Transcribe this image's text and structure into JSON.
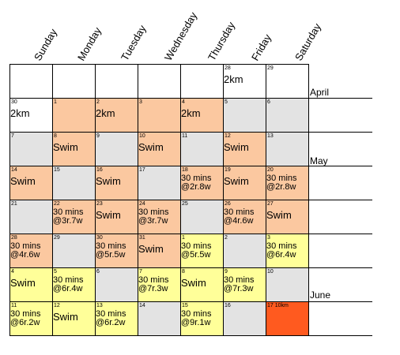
{
  "days": [
    "Sunday",
    "Monday",
    "Tuesday",
    "Wednesday",
    "Thursday",
    "Friday",
    "Saturday"
  ],
  "colors": {
    "lavender": "#ccccff",
    "peach": "#fbc8a0",
    "gray": "#e3e3e3",
    "yellow": "#ffff99",
    "red": "#ff5a1f",
    "white": "#ffffff"
  },
  "weeks": [
    {
      "month": "April",
      "cells": [
        {
          "date": "",
          "text": "",
          "color": "white"
        },
        {
          "date": "",
          "text": "",
          "color": "white"
        },
        {
          "date": "",
          "text": "",
          "color": "white"
        },
        {
          "date": "",
          "text": "",
          "color": "white"
        },
        {
          "date": "",
          "text": "",
          "color": "white"
        },
        {
          "date": "28",
          "text": "2km",
          "color": "lavender"
        },
        {
          "date": "29",
          "text": "",
          "color": "lavender"
        }
      ]
    },
    {
      "month": "",
      "cells": [
        {
          "date": "30",
          "text": "2km",
          "color": "lavender"
        },
        {
          "date": "1",
          "text": "",
          "color": "peach"
        },
        {
          "date": "2",
          "text": "2km",
          "color": "peach"
        },
        {
          "date": "3",
          "text": "",
          "color": "peach"
        },
        {
          "date": "4",
          "text": "2km",
          "color": "peach"
        },
        {
          "date": "5",
          "text": "",
          "color": "gray"
        },
        {
          "date": "6",
          "text": "",
          "color": "gray"
        }
      ]
    },
    {
      "month": "May",
      "cells": [
        {
          "date": "7",
          "text": "",
          "color": "gray"
        },
        {
          "date": "8",
          "text": "Swim",
          "color": "peach"
        },
        {
          "date": "9",
          "text": "",
          "color": "gray"
        },
        {
          "date": "10",
          "text": "Swim",
          "color": "peach"
        },
        {
          "date": "11",
          "text": "",
          "color": "gray"
        },
        {
          "date": "12",
          "text": "Swim",
          "color": "peach"
        },
        {
          "date": "13",
          "text": "",
          "color": "gray"
        }
      ]
    },
    {
      "month": "",
      "cells": [
        {
          "date": "14",
          "text": "Swim",
          "color": "peach"
        },
        {
          "date": "15",
          "text": "",
          "color": "gray"
        },
        {
          "date": "16",
          "text": "Swim",
          "color": "peach"
        },
        {
          "date": "17",
          "text": "",
          "color": "gray"
        },
        {
          "date": "18",
          "text": "30 mins\n@2r.8w",
          "color": "peach"
        },
        {
          "date": "19",
          "text": "Swim",
          "color": "peach"
        },
        {
          "date": "20",
          "text": "30 mins\n@2r.8w",
          "color": "peach"
        }
      ]
    },
    {
      "month": "",
      "cells": [
        {
          "date": "21",
          "text": "",
          "color": "gray"
        },
        {
          "date": "22",
          "text": "30 mins\n@3r.7w",
          "color": "peach"
        },
        {
          "date": "23",
          "text": "Swim",
          "color": "peach"
        },
        {
          "date": "24",
          "text": "30 mins\n@3r.7w",
          "color": "peach"
        },
        {
          "date": "25",
          "text": "",
          "color": "gray"
        },
        {
          "date": "26",
          "text": "30 mins\n@4r.6w",
          "color": "peach"
        },
        {
          "date": "27",
          "text": "Swim",
          "color": "peach"
        }
      ]
    },
    {
      "month": "",
      "cells": [
        {
          "date": "28",
          "text": "30 mins\n@4r.6w",
          "color": "peach"
        },
        {
          "date": "29",
          "text": "",
          "color": "gray"
        },
        {
          "date": "30",
          "text": "30 mins\n@5r.5w",
          "color": "peach"
        },
        {
          "date": "31",
          "text": "Swim",
          "color": "peach"
        },
        {
          "date": "1",
          "text": "30 mins\n@5r.5w",
          "color": "yellow"
        },
        {
          "date": "2",
          "text": "",
          "color": "gray"
        },
        {
          "date": "3",
          "text": "30 mins\n@6r.4w",
          "color": "yellow"
        }
      ]
    },
    {
      "month": "June",
      "cells": [
        {
          "date": "4",
          "text": "Swim",
          "color": "yellow"
        },
        {
          "date": "5",
          "text": "30 mins\n@6r.4w",
          "color": "yellow"
        },
        {
          "date": "6",
          "text": "",
          "color": "gray"
        },
        {
          "date": "7",
          "text": "30 mins\n@7r.3w",
          "color": "yellow"
        },
        {
          "date": "8",
          "text": "Swim",
          "color": "yellow"
        },
        {
          "date": "9",
          "text": "30 mins\n@7r.3w",
          "color": "yellow"
        },
        {
          "date": "10",
          "text": "",
          "color": "gray"
        }
      ]
    },
    {
      "month": "",
      "cells": [
        {
          "date": "11",
          "text": "30 mins\n@6r.2w",
          "color": "yellow"
        },
        {
          "date": "12",
          "text": "Swim",
          "color": "yellow"
        },
        {
          "date": "13",
          "text": "30 mins\n@6r.2w",
          "color": "yellow"
        },
        {
          "date": "14",
          "text": "",
          "color": "gray"
        },
        {
          "date": "15",
          "text": "30 mins\n@9r.1w",
          "color": "yellow"
        },
        {
          "date": "16",
          "text": "",
          "color": "gray"
        },
        {
          "date": "17 10km",
          "text": "",
          "color": "red"
        }
      ]
    }
  ]
}
